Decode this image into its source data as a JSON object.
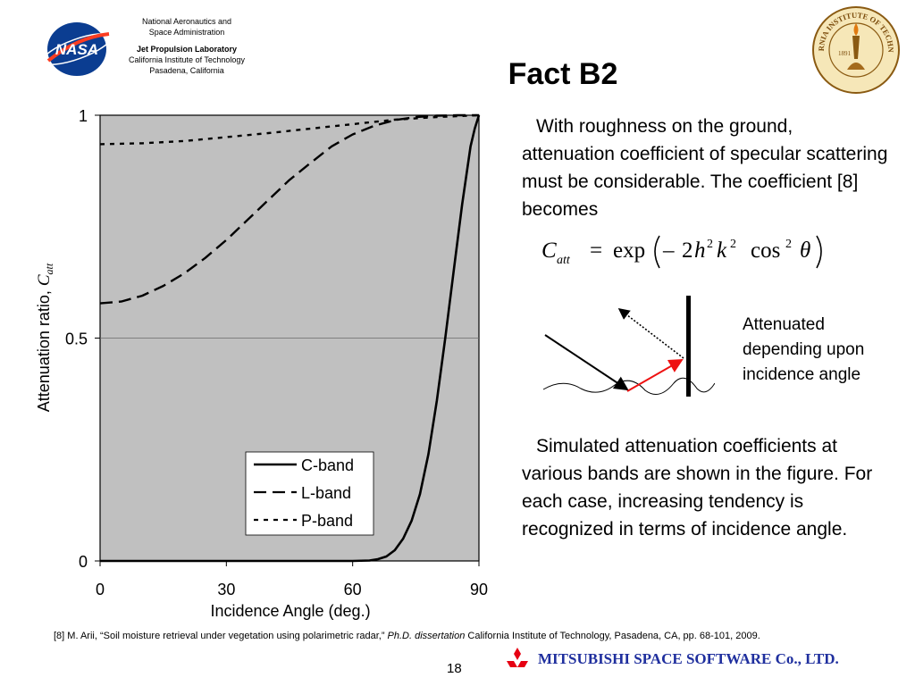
{
  "header": {
    "agency_line1": "National Aeronautics and",
    "agency_line2": "Space Administration",
    "lab_name": "Jet Propulsion Laboratory",
    "institute": "California Institute of Technology",
    "location": "Pasadena, California",
    "nasa_logo_text": "NASA",
    "seal_text": "CALIFORNIA INSTITUTE OF TECHNOLOGY",
    "seal_year": "1891"
  },
  "slide": {
    "title": "Fact B2",
    "page_number": "18"
  },
  "text": {
    "paragraph1": "With roughness on the ground, attenuation coefficient of specular scattering must be considerable. The coefficient [8] becomes",
    "paragraph2": "Simulated attenuation coefficients at various bands are shown in the figure. For each case, increasing tendency is recognized in terms of incidence angle.",
    "diagram_caption": "Attenuated depending upon incidence angle"
  },
  "formula": {
    "symbol": "C",
    "subscript": "att",
    "equals": "=",
    "func": "exp",
    "minus": "–",
    "coef": "2",
    "h": "h",
    "exp2a": "2",
    "k": "k",
    "exp2b": "2",
    "cos": "cos",
    "exp2c": "2",
    "theta": "θ"
  },
  "reference": {
    "prefix": "[8] M. Arii, “Soil moisture retrieval under vegetation using polarimetric radar,” ",
    "italic": "Ph.D. dissertation",
    "suffix": " California Institute of Technology, Pasadena, CA, pp. 68-101, 2009."
  },
  "footer": {
    "company": "MITSUBISHI SPACE SOFTWARE Co., LTD."
  },
  "colors": {
    "plot_bg": "#c0c0c0",
    "arrow_red": "#ee1111",
    "company_blue": "#1f2f9e",
    "logo_red": "#e60012"
  },
  "chart_data": {
    "type": "line",
    "xlabel": "Incidence Angle (deg.)",
    "ylabel_prefix": "Attenuation ratio, ",
    "ylabel_symbol": "C",
    "ylabel_sub": "att",
    "xlim": [
      0,
      90
    ],
    "ylim": [
      0,
      1
    ],
    "xticks": [
      0,
      30,
      60,
      90
    ],
    "yticks": [
      0,
      0.5,
      1
    ],
    "ytick_labels": [
      "0",
      "0.5",
      "1"
    ],
    "gridlines_y": [
      0.5
    ],
    "legend_position": "bottom-right",
    "series": [
      {
        "name": "C-band",
        "style": "solid",
        "x": [
          0,
          60,
          64,
          66,
          68,
          70,
          72,
          74,
          76,
          78,
          80,
          82,
          84,
          86,
          88,
          89,
          90
        ],
        "y": [
          0,
          0,
          0.001,
          0.004,
          0.01,
          0.024,
          0.05,
          0.09,
          0.15,
          0.24,
          0.36,
          0.5,
          0.65,
          0.8,
          0.93,
          0.97,
          1
        ]
      },
      {
        "name": "L-band",
        "style": "dash",
        "x": [
          0,
          5,
          10,
          15,
          20,
          25,
          30,
          35,
          40,
          45,
          50,
          55,
          60,
          65,
          70,
          75,
          80,
          85,
          90
        ],
        "y": [
          0.578,
          0.582,
          0.595,
          0.617,
          0.645,
          0.68,
          0.72,
          0.765,
          0.81,
          0.855,
          0.893,
          0.93,
          0.957,
          0.976,
          0.989,
          0.996,
          0.999,
          1,
          1
        ]
      },
      {
        "name": "P-band",
        "style": "dot",
        "x": [
          0,
          10,
          20,
          30,
          40,
          50,
          60,
          70,
          80,
          90
        ],
        "y": [
          0.935,
          0.937,
          0.942,
          0.951,
          0.96,
          0.97,
          0.98,
          0.99,
          0.996,
          1
        ]
      }
    ]
  }
}
